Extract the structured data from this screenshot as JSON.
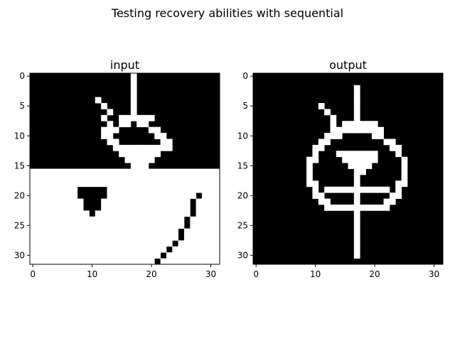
{
  "figure": {
    "suptitle": "Testing recovery abilities with sequential"
  },
  "chart_data": [
    {
      "type": "heatmap",
      "title": "input",
      "colormap": "gray",
      "rows": 32,
      "cols": 32,
      "xticks": [
        0,
        10,
        20,
        30
      ],
      "yticks": [
        0,
        5,
        10,
        15,
        20,
        25,
        30
      ],
      "xlim": [
        -0.5,
        31.5
      ],
      "ylim": [
        31.5,
        -0.5
      ],
      "grid": false,
      "values": [
        "00000000000000000100000000000000",
        "00000000000000000100000000000000",
        "00000000000000000100000000000000",
        "00000000000000000100000000000000",
        "00000000000100000100000000000000",
        "00000000000010000100000000000000",
        "00000000000001000100000000000000",
        "00000000000010011111100000000000",
        "00000000000001011011000000000000",
        "00000000000011100000110000000000",
        "00000000000011000000011000000000",
        "00000000000001100000001100000000",
        "00000000000000111111111100000000",
        "00000000000000011111110000000000",
        "00000000000000001111100000000000",
        "00000000000000000111000000000000",
        "11111111111111111111111111111111",
        "11111111111111111111111111111111",
        "11111111111111111111111111111111",
        "11111111000001111111111111111111",
        "11111111000001111111111111110111",
        "11111111100011111111111111101111",
        "11111111100011111111111111101111",
        "11111111110111111111111111101111",
        "11111111111111111111111111011111",
        "11111111111111111111111111011111",
        "11111111111111111111111110111111",
        "11111111111111111111111110111111",
        "11111111111111111111111101111111",
        "11111111111111111111111011111111",
        "11111111111111111111110111111111",
        "11111111111111111111101111111111"
      ]
    },
    {
      "type": "heatmap",
      "title": "output",
      "colormap": "gray",
      "rows": 32,
      "cols": 32,
      "xticks": [
        0,
        10,
        20,
        30
      ],
      "yticks": [
        0,
        5,
        10,
        15,
        20,
        25,
        30
      ],
      "xlim": [
        -0.5,
        31.5
      ],
      "ylim": [
        31.5,
        -0.5
      ],
      "grid": false,
      "values": [
        "00000000000000000000000000000000",
        "00000000000000000000000000000000",
        "00000000000000000100000000000000",
        "00000000000000000100000000000000",
        "00000000000000000100000000000000",
        "00000000000100000100000000000000",
        "00000000000010000100000000000000",
        "00000000000001000100000000000000",
        "00000000000001011111100000000000",
        "00000000000001111111110000000000",
        "00000000000011100000110000000000",
        "00000000000110000000001100000000",
        "00000000001100000000000110000000",
        "00000000001000111111100010000000",
        "00000000011000011111100001000000",
        "00000000010000001111000001000000",
        "00000000010000000110000001000000",
        "00000000010000000100000001000000",
        "00000000011000000100000011000000",
        "00000000001011111111111010000000",
        "00000000001100000100000110000000",
        "00000000000110000100001100000000",
        "00000000000011111111111000000000",
        "00000000000000000100000000000000",
        "00000000000000000100000000000000",
        "00000000000000000100000000000000",
        "00000000000000000100000000000000",
        "00000000000000000100000000000000",
        "00000000000000000100000000000000",
        "00000000000000000100000000000000",
        "00000000000000000100000000000000",
        "00000000000000000000000000000000"
      ]
    }
  ]
}
